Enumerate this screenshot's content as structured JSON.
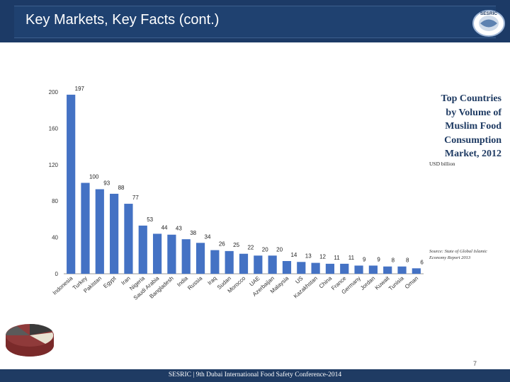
{
  "header": {
    "title": "Key Markets, Key Facts (cont.)"
  },
  "logo": {
    "text": "SESRIC",
    "icon": "globe-logo"
  },
  "side_title": {
    "lines": [
      "Top Countries",
      "by Volume of",
      "Muslim Food",
      "Consumption",
      "Market, 2012"
    ]
  },
  "unit_label": "USD billion",
  "source_note": "Source: State of Global Islamic Economy Report 2013",
  "footer": {
    "text": "SESRIC | 9th Dubai International Food Safety Conference-2014"
  },
  "page_number": "7",
  "colors": {
    "header": "#1f4170",
    "bar": "#4472c4",
    "footer": "#1f3b63"
  },
  "chart_data": {
    "type": "bar",
    "title": "Top Countries by Volume of Muslim Food Consumption Market, 2012",
    "ylabel": "USD billion",
    "xlabel": "",
    "ylim": [
      0,
      200
    ],
    "yticks": [
      0,
      40,
      80,
      120,
      160,
      200
    ],
    "grid": false,
    "categories": [
      "Indonesia",
      "Turkey",
      "Pakistan",
      "Egypt",
      "Iran",
      "Nigeria",
      "Saudi Arabia",
      "Bangladesh",
      "India",
      "Russia",
      "Iraq",
      "Sudan",
      "Morocco",
      "UAE",
      "Azerbaijan",
      "Malaysia",
      "US",
      "Kazakhstan",
      "China",
      "France",
      "Germany",
      "Jordan",
      "Kuwait",
      "Tunisia",
      "Oman"
    ],
    "values": [
      197,
      100,
      93,
      88,
      77,
      53,
      44,
      43,
      38,
      34,
      26,
      25,
      22,
      20,
      20,
      14,
      13,
      12,
      11,
      11,
      9,
      9,
      8,
      8,
      6
    ]
  }
}
